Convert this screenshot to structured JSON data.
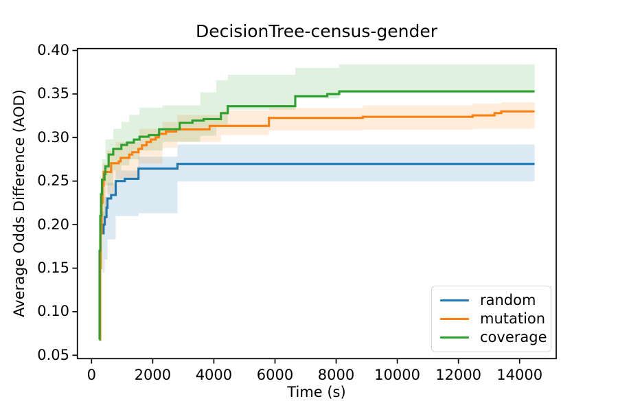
{
  "chart_data": {
    "type": "line",
    "style": "step-post-best-so-far",
    "title": "DecisionTree-census-gender",
    "xlabel": "Time (s)",
    "ylabel": "Average Odds Difference (AOD)",
    "xlim": [
      -463,
      15197
    ],
    "ylim": [
      0.0461,
      0.4022
    ],
    "grid": false,
    "end_time": 14490,
    "xticks": {
      "values": [
        0,
        2000,
        4000,
        6000,
        8000,
        10000,
        12000,
        14000
      ],
      "labels": [
        "0",
        "2000",
        "4000",
        "6000",
        "8000",
        "10000",
        "12000",
        "14000"
      ]
    },
    "yticks": {
      "values": [
        0.05,
        0.1,
        0.15,
        0.2,
        0.25,
        0.3,
        0.35,
        0.4
      ],
      "labels": [
        "0.05",
        "0.10",
        "0.15",
        "0.20",
        "0.25",
        "0.30",
        "0.35",
        "0.40"
      ]
    },
    "legend": {
      "position": "lower right",
      "entries": [
        {
          "label": "random",
          "color": "#1f77b4"
        },
        {
          "label": "mutation",
          "color": "#ff7f0e"
        },
        {
          "label": "coverage",
          "color": "#2ca02c"
        }
      ]
    },
    "series": [
      {
        "name": "random",
        "color": "#1f77b4",
        "final_value": 0.27,
        "steps": [
          [
            360,
            0.19
          ],
          [
            395,
            0.2
          ],
          [
            430,
            0.2087
          ],
          [
            490,
            0.2195
          ],
          [
            520,
            0.23
          ],
          [
            640,
            0.234
          ],
          [
            790,
            0.25
          ],
          [
            1090,
            0.2526
          ],
          [
            1535,
            0.2644
          ],
          [
            2810,
            0.2697
          ]
        ]
      },
      {
        "name": "mutation",
        "color": "#ff7f0e",
        "final_value": 0.33,
        "steps": [
          [
            270,
            0.068
          ],
          [
            285,
            0.15
          ],
          [
            300,
            0.19
          ],
          [
            330,
            0.225
          ],
          [
            360,
            0.245
          ],
          [
            395,
            0.2605
          ],
          [
            640,
            0.2704
          ],
          [
            890,
            0.2726
          ],
          [
            950,
            0.2766
          ],
          [
            1235,
            0.2805
          ],
          [
            1330,
            0.2831
          ],
          [
            1535,
            0.2871
          ],
          [
            1650,
            0.291
          ],
          [
            1797,
            0.2949
          ],
          [
            1940,
            0.2977
          ],
          [
            2097,
            0.3003
          ],
          [
            2200,
            0.3042
          ],
          [
            2434,
            0.3068
          ],
          [
            2770,
            0.3094
          ],
          [
            3860,
            0.3134
          ],
          [
            5800,
            0.3226
          ],
          [
            8870,
            0.3238
          ],
          [
            12465,
            0.3254
          ],
          [
            13180,
            0.328
          ],
          [
            13400,
            0.33
          ]
        ]
      },
      {
        "name": "coverage",
        "color": "#2ca02c",
        "final_value": 0.353,
        "steps": [
          [
            250,
            0.068
          ],
          [
            262,
            0.17
          ],
          [
            285,
            0.21
          ],
          [
            310,
            0.235
          ],
          [
            340,
            0.2517
          ],
          [
            425,
            0.258
          ],
          [
            455,
            0.267
          ],
          [
            560,
            0.2805
          ],
          [
            710,
            0.287
          ],
          [
            975,
            0.2915
          ],
          [
            1160,
            0.2942
          ],
          [
            1385,
            0.2977
          ],
          [
            1570,
            0.301
          ],
          [
            1873,
            0.3029
          ],
          [
            2210,
            0.3095
          ],
          [
            2884,
            0.3169
          ],
          [
            3300,
            0.3195
          ],
          [
            3670,
            0.3212
          ],
          [
            4230,
            0.328
          ],
          [
            4455,
            0.336
          ],
          [
            6663,
            0.3475
          ],
          [
            7711,
            0.35
          ],
          [
            8100,
            0.353
          ]
        ]
      }
    ],
    "bands": [
      {
        "series": "random",
        "color": "#1f77b4",
        "opacity": 0.16,
        "steps": [
          [
            360,
            0.145,
            0.215
          ],
          [
            430,
            0.16,
            0.232
          ],
          [
            520,
            0.183,
            0.248
          ],
          [
            790,
            0.21,
            0.262
          ],
          [
            1535,
            0.213,
            0.278
          ],
          [
            2810,
            0.2495,
            0.292
          ]
        ]
      },
      {
        "series": "mutation",
        "color": "#ff7f0e",
        "opacity": 0.15,
        "steps": [
          [
            270,
            0.068,
            0.12
          ],
          [
            300,
            0.15,
            0.22
          ],
          [
            360,
            0.2,
            0.27
          ],
          [
            500,
            0.235,
            0.285
          ],
          [
            790,
            0.252,
            0.295
          ],
          [
            1570,
            0.27,
            0.31
          ],
          [
            2320,
            0.288,
            0.318
          ],
          [
            2800,
            0.295,
            0.326
          ],
          [
            4230,
            0.303,
            0.331
          ],
          [
            5800,
            0.308,
            0.334
          ],
          [
            8870,
            0.309,
            0.337
          ],
          [
            12465,
            0.31,
            0.339
          ],
          [
            13400,
            0.31,
            0.3405
          ]
        ]
      },
      {
        "series": "coverage",
        "color": "#2ca02c",
        "opacity": 0.15,
        "steps": [
          [
            250,
            0.068,
            0.13
          ],
          [
            285,
            0.16,
            0.24
          ],
          [
            340,
            0.21,
            0.275
          ],
          [
            455,
            0.245,
            0.298
          ],
          [
            710,
            0.262,
            0.31
          ],
          [
            975,
            0.268,
            0.318
          ],
          [
            1235,
            0.275,
            0.326
          ],
          [
            1570,
            0.285,
            0.3344
          ],
          [
            2320,
            0.295,
            0.337
          ],
          [
            3557,
            0.302,
            0.352
          ],
          [
            4080,
            0.315,
            0.366
          ],
          [
            4455,
            0.332,
            0.372
          ],
          [
            6663,
            0.345,
            0.38
          ],
          [
            8100,
            0.351,
            0.384
          ]
        ]
      }
    ],
    "axis_color": "#000000"
  }
}
